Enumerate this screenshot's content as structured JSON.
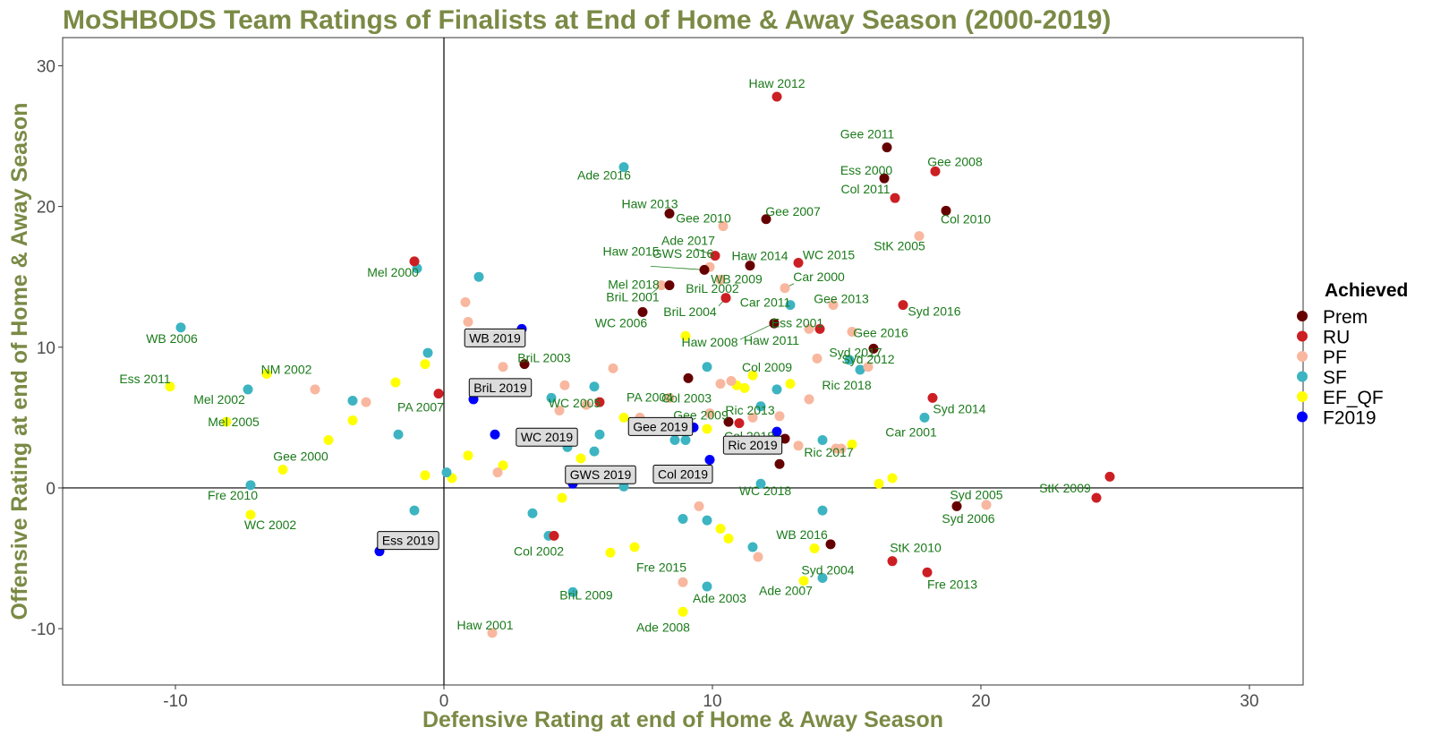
{
  "chart_data": {
    "type": "scatter",
    "title": "MoSHBODS Team Ratings of Finalists at End of Home & Away Season (2000-2019)",
    "xlabel": "Defensive Rating at end of Home & Away Season",
    "ylabel": "Offensive Rating at end of Home & Away Season",
    "xlim": [
      -14.2,
      32.0
    ],
    "ylim": [
      -14.0,
      32.0
    ],
    "xticks": [
      -10,
      0,
      10,
      20,
      30
    ],
    "yticks": [
      -10,
      0,
      10,
      20,
      30
    ],
    "grid": false,
    "reference_lines": {
      "x": 0,
      "y": 0
    },
    "legend": {
      "title": "Achieved",
      "position": "right",
      "entries": [
        {
          "label": "Prem",
          "color": "#660000"
        },
        {
          "label": "RU",
          "color": "#cc1f24"
        },
        {
          "label": "PF",
          "color": "#f8b79e"
        },
        {
          "label": "SF",
          "color": "#3db4c2"
        },
        {
          "label": "EF_QF",
          "color": "#ffff00"
        },
        {
          "label": "F2019",
          "color": "#0000ff"
        }
      ]
    },
    "points": [
      {
        "x": 12.4,
        "y": 27.8,
        "cat": "RU",
        "label": "Haw 2012"
      },
      {
        "x": 16.5,
        "y": 24.2,
        "cat": "Prem",
        "label": "Gee 2011"
      },
      {
        "x": 16.4,
        "y": 22.0,
        "cat": "Prem",
        "label": "Ess 2000"
      },
      {
        "x": 18.3,
        "y": 22.5,
        "cat": "RU",
        "label": "Gee 2008"
      },
      {
        "x": 16.8,
        "y": 20.6,
        "cat": "RU",
        "label": "Col 2011"
      },
      {
        "x": 18.7,
        "y": 19.7,
        "cat": "Prem",
        "label": "Col 2010"
      },
      {
        "x": 6.7,
        "y": 22.8,
        "cat": "SF",
        "label": "Ade 2016"
      },
      {
        "x": 8.4,
        "y": 19.5,
        "cat": "Prem",
        "label": "Haw 2013"
      },
      {
        "x": 12.0,
        "y": 19.1,
        "cat": "Prem",
        "label": "Gee 2007"
      },
      {
        "x": 10.4,
        "y": 18.6,
        "cat": "PF",
        "label": "Gee 2010"
      },
      {
        "x": 17.7,
        "y": 17.9,
        "cat": "PF",
        "label": "StK 2005"
      },
      {
        "x": 10.1,
        "y": 16.5,
        "cat": "RU",
        "label": "Ade 2017"
      },
      {
        "x": 9.7,
        "y": 15.5,
        "cat": "Prem",
        "label": "Haw 2015"
      },
      {
        "x": 9.9,
        "y": 15.7,
        "cat": "PF",
        "label": "GWS 2016"
      },
      {
        "x": 11.4,
        "y": 15.8,
        "cat": "Prem",
        "label": "Haw 2014"
      },
      {
        "x": 13.2,
        "y": 16.0,
        "cat": "RU",
        "label": "WC 2015"
      },
      {
        "x": 10.3,
        "y": 14.8,
        "cat": "PF",
        "label": "WB 2009"
      },
      {
        "x": 12.7,
        "y": 14.2,
        "cat": "PF",
        "label": "Car 2000"
      },
      {
        "x": -1.1,
        "y": 16.1,
        "cat": "RU",
        "label": "Mel 2000"
      },
      {
        "x": 8.4,
        "y": 14.4,
        "cat": "Prem",
        "label": "Mel 2018"
      },
      {
        "x": 8.1,
        "y": 14.4,
        "cat": "PF",
        "label": "BriL 2001"
      },
      {
        "x": 10.5,
        "y": 13.5,
        "cat": "RU",
        "label": "BriL 2002"
      },
      {
        "x": 12.9,
        "y": 13.0,
        "cat": "SF",
        "label": "Car 2011"
      },
      {
        "x": 14.5,
        "y": 13.0,
        "cat": "PF",
        "label": "Gee 2013"
      },
      {
        "x": 17.1,
        "y": 13.0,
        "cat": "RU",
        "label": "Syd 2016"
      },
      {
        "x": 7.4,
        "y": 12.5,
        "cat": "Prem",
        "label": "WC 2006"
      },
      {
        "x": 10.5,
        "y": 13.5,
        "cat": "RU",
        "label": "BriL 2004"
      },
      {
        "x": 12.3,
        "y": 11.7,
        "cat": "Prem",
        "label": "Haw 2008"
      },
      {
        "x": 14.0,
        "y": 11.3,
        "cat": "RU",
        "label": "Ess 2001"
      },
      {
        "x": 15.2,
        "y": 11.1,
        "cat": "PF",
        "label": "Gee 2016"
      },
      {
        "x": 12.3,
        "y": 11.7,
        "cat": "Prem",
        "label": "Haw 2011"
      },
      {
        "x": -9.8,
        "y": 11.4,
        "cat": "SF",
        "label": "WB 2006"
      },
      {
        "x": 16.0,
        "y": 9.9,
        "cat": "Prem",
        "label": "Syd 2017"
      },
      {
        "x": 15.8,
        "y": 8.6,
        "cat": "PF",
        "label": "Syd 2012"
      },
      {
        "x": 3.0,
        "y": 8.8,
        "cat": "Prem",
        "label": "BriL 2003"
      },
      {
        "x": -6.6,
        "y": 8.1,
        "cat": "EF_QF",
        "label": "NM 2002"
      },
      {
        "x": -10.2,
        "y": 7.2,
        "cat": "EF_QF",
        "label": "Ess 2011"
      },
      {
        "x": 9.1,
        "y": 7.8,
        "cat": "Prem",
        "label": "Col 2003"
      },
      {
        "x": 11.5,
        "y": 8.0,
        "cat": "EF_QF",
        "label": "Col 2009"
      },
      {
        "x": 15.5,
        "y": 8.4,
        "cat": "SF",
        "label": "Ric 2018"
      },
      {
        "x": -0.2,
        "y": 6.7,
        "cat": "RU",
        "label": "PA 2007"
      },
      {
        "x": -7.3,
        "y": 7.0,
        "cat": "SF",
        "label": "Mel 2002"
      },
      {
        "x": 11.8,
        "y": 5.8,
        "cat": "SF",
        "label": "Ric 2013"
      },
      {
        "x": 5.3,
        "y": 5.9,
        "cat": "PF",
        "label": "WC 2005"
      },
      {
        "x": 8.4,
        "y": 6.4,
        "cat": "PF",
        "label": "PA 2004"
      },
      {
        "x": -8.1,
        "y": 4.7,
        "cat": "EF_QF",
        "label": "Mel 2005"
      },
      {
        "x": 9.9,
        "y": 5.3,
        "cat": "PF",
        "label": "Gee 2009"
      },
      {
        "x": 18.2,
        "y": 6.4,
        "cat": "RU",
        "label": "Syd 2014"
      },
      {
        "x": 12.7,
        "y": 3.5,
        "cat": "Prem",
        "label": "Col 2018"
      },
      {
        "x": 17.9,
        "y": 5.0,
        "cat": "SF",
        "label": "Car 2001"
      },
      {
        "x": 14.6,
        "y": 2.8,
        "cat": "PF",
        "label": "Ric 2017"
      },
      {
        "x": -6.0,
        "y": 1.3,
        "cat": "EF_QF",
        "label": "Gee 2000"
      },
      {
        "x": 11.8,
        "y": 0.3,
        "cat": "SF",
        "label": "WC 2018"
      },
      {
        "x": -7.2,
        "y": 0.2,
        "cat": "SF",
        "label": "Fre 2010"
      },
      {
        "x": -7.2,
        "y": -1.9,
        "cat": "EF_QF",
        "label": "WC 2002"
      },
      {
        "x": 19.1,
        "y": -1.3,
        "cat": "Prem",
        "label": "Syd 2005"
      },
      {
        "x": 24.3,
        "y": -0.7,
        "cat": "RU",
        "label": "StK 2009"
      },
      {
        "x": 20.2,
        "y": -1.2,
        "cat": "PF",
        "label": "Syd 2006"
      },
      {
        "x": 4.1,
        "y": -3.4,
        "cat": "RU",
        "label": "Col 2002"
      },
      {
        "x": 14.4,
        "y": -4.0,
        "cat": "Prem",
        "label": "WB 2016"
      },
      {
        "x": 16.7,
        "y": -5.2,
        "cat": "RU",
        "label": "StK 2010"
      },
      {
        "x": 8.9,
        "y": -6.7,
        "cat": "PF",
        "label": "Fre 2015"
      },
      {
        "x": 14.1,
        "y": -6.4,
        "cat": "SF",
        "label": "Syd 2004"
      },
      {
        "x": 18.0,
        "y": -6.0,
        "cat": "RU",
        "label": "Fre 2013"
      },
      {
        "x": 4.8,
        "y": -7.4,
        "cat": "SF",
        "label": "BriL 2009"
      },
      {
        "x": 9.8,
        "y": -7.0,
        "cat": "SF",
        "label": "Ade 2003"
      },
      {
        "x": 13.4,
        "y": -6.6,
        "cat": "EF_QF",
        "label": "Ade 2007"
      },
      {
        "x": 8.9,
        "y": -8.8,
        "cat": "EF_QF",
        "label": "Ade 2008"
      },
      {
        "x": 1.8,
        "y": -10.3,
        "cat": "PF",
        "label": "Haw 2001"
      },
      {
        "x": 2.9,
        "y": 11.3,
        "cat": "F2019",
        "label": "WB 2019",
        "boxed": true
      },
      {
        "x": 1.1,
        "y": 6.3,
        "cat": "F2019",
        "label": "BriL 2019",
        "boxed": true
      },
      {
        "x": 1.9,
        "y": 3.8,
        "cat": "F2019",
        "label": "WC 2019",
        "boxed": true
      },
      {
        "x": 9.3,
        "y": 4.3,
        "cat": "F2019",
        "label": "Gee 2019",
        "boxed": true
      },
      {
        "x": 12.4,
        "y": 4.0,
        "cat": "F2019",
        "label": "Ric 2019",
        "boxed": true
      },
      {
        "x": 4.8,
        "y": 0.3,
        "cat": "F2019",
        "label": "GWS 2019",
        "boxed": true
      },
      {
        "x": 9.9,
        "y": 2.0,
        "cat": "F2019",
        "label": "Col 2019",
        "boxed": true
      },
      {
        "x": -2.4,
        "y": -4.5,
        "cat": "F2019",
        "label": "Ess 2019",
        "boxed": true
      },
      {
        "x": 24.8,
        "y": 0.8,
        "cat": "RU"
      },
      {
        "x": 1.3,
        "y": 15.0,
        "cat": "SF"
      },
      {
        "x": -1.0,
        "y": 15.6,
        "cat": "SF"
      },
      {
        "x": 0.8,
        "y": 13.2,
        "cat": "PF"
      },
      {
        "x": 0.9,
        "y": 11.8,
        "cat": "PF"
      },
      {
        "x": -0.6,
        "y": 9.6,
        "cat": "SF"
      },
      {
        "x": -0.7,
        "y": 8.8,
        "cat": "EF_QF"
      },
      {
        "x": -1.8,
        "y": 7.5,
        "cat": "EF_QF"
      },
      {
        "x": -4.8,
        "y": 7.0,
        "cat": "PF"
      },
      {
        "x": -3.4,
        "y": 6.2,
        "cat": "SF"
      },
      {
        "x": -2.9,
        "y": 6.1,
        "cat": "PF"
      },
      {
        "x": -3.4,
        "y": 4.8,
        "cat": "EF_QF"
      },
      {
        "x": -1.7,
        "y": 3.8,
        "cat": "SF"
      },
      {
        "x": -4.3,
        "y": 3.4,
        "cat": "EF_QF"
      },
      {
        "x": 0.9,
        "y": 2.3,
        "cat": "EF_QF"
      },
      {
        "x": 2.2,
        "y": 1.6,
        "cat": "EF_QF"
      },
      {
        "x": 2.0,
        "y": 1.1,
        "cat": "PF"
      },
      {
        "x": 0.1,
        "y": 1.1,
        "cat": "SF"
      },
      {
        "x": 0.3,
        "y": 0.7,
        "cat": "EF_QF"
      },
      {
        "x": -0.7,
        "y": 0.9,
        "cat": "EF_QF"
      },
      {
        "x": -1.1,
        "y": -1.6,
        "cat": "SF"
      },
      {
        "x": 2.2,
        "y": 8.6,
        "cat": "PF"
      },
      {
        "x": 4.5,
        "y": 7.3,
        "cat": "PF"
      },
      {
        "x": 6.3,
        "y": 8.5,
        "cat": "PF"
      },
      {
        "x": 4.0,
        "y": 6.4,
        "cat": "SF"
      },
      {
        "x": 5.6,
        "y": 7.2,
        "cat": "SF"
      },
      {
        "x": 5.8,
        "y": 6.1,
        "cat": "RU"
      },
      {
        "x": 4.3,
        "y": 5.5,
        "cat": "PF"
      },
      {
        "x": 4.1,
        "y": 3.8,
        "cat": "PF"
      },
      {
        "x": 4.6,
        "y": 2.9,
        "cat": "SF"
      },
      {
        "x": 5.8,
        "y": 3.8,
        "cat": "SF"
      },
      {
        "x": 5.6,
        "y": 2.6,
        "cat": "SF"
      },
      {
        "x": 5.1,
        "y": 2.1,
        "cat": "EF_QF"
      },
      {
        "x": 6.7,
        "y": 5.0,
        "cat": "EF_QF"
      },
      {
        "x": 7.3,
        "y": 5.0,
        "cat": "PF"
      },
      {
        "x": 7.8,
        "y": 4.4,
        "cat": "PF"
      },
      {
        "x": 8.1,
        "y": 4.4,
        "cat": "PF"
      },
      {
        "x": 8.6,
        "y": 3.4,
        "cat": "SF"
      },
      {
        "x": 9.0,
        "y": 3.4,
        "cat": "SF"
      },
      {
        "x": 9.8,
        "y": 4.2,
        "cat": "EF_QF"
      },
      {
        "x": 9.0,
        "y": 10.8,
        "cat": "EF_QF"
      },
      {
        "x": 9.8,
        "y": 8.6,
        "cat": "SF"
      },
      {
        "x": 10.3,
        "y": 7.4,
        "cat": "PF"
      },
      {
        "x": 10.7,
        "y": 7.6,
        "cat": "PF"
      },
      {
        "x": 10.9,
        "y": 7.3,
        "cat": "EF_QF"
      },
      {
        "x": 11.2,
        "y": 7.1,
        "cat": "EF_QF"
      },
      {
        "x": 11.5,
        "y": 5.0,
        "cat": "PF"
      },
      {
        "x": 10.6,
        "y": 4.7,
        "cat": "Prem"
      },
      {
        "x": 11.0,
        "y": 4.6,
        "cat": "RU"
      },
      {
        "x": 12.5,
        "y": 5.1,
        "cat": "PF"
      },
      {
        "x": 12.4,
        "y": 7.0,
        "cat": "SF"
      },
      {
        "x": 12.9,
        "y": 7.4,
        "cat": "EF_QF"
      },
      {
        "x": 13.6,
        "y": 6.3,
        "cat": "PF"
      },
      {
        "x": 14.1,
        "y": 3.4,
        "cat": "SF"
      },
      {
        "x": 14.8,
        "y": 2.8,
        "cat": "PF"
      },
      {
        "x": 15.2,
        "y": 3.1,
        "cat": "EF_QF"
      },
      {
        "x": 13.2,
        "y": 3.0,
        "cat": "PF"
      },
      {
        "x": 11.1,
        "y": 3.1,
        "cat": "SF"
      },
      {
        "x": 12.3,
        "y": 2.8,
        "cat": "EF_QF"
      },
      {
        "x": 12.5,
        "y": 1.7,
        "cat": "Prem"
      },
      {
        "x": 13.6,
        "y": 11.3,
        "cat": "PF"
      },
      {
        "x": 13.9,
        "y": 9.2,
        "cat": "PF"
      },
      {
        "x": 15.1,
        "y": 9.1,
        "cat": "SF"
      },
      {
        "x": 16.7,
        "y": 0.7,
        "cat": "EF_QF"
      },
      {
        "x": 16.2,
        "y": 0.3,
        "cat": "EF_QF"
      },
      {
        "x": 6.7,
        "y": 0.1,
        "cat": "SF"
      },
      {
        "x": 4.4,
        "y": -0.7,
        "cat": "EF_QF"
      },
      {
        "x": 3.3,
        "y": -1.8,
        "cat": "SF"
      },
      {
        "x": 3.9,
        "y": -3.4,
        "cat": "SF"
      },
      {
        "x": 6.2,
        "y": -4.6,
        "cat": "EF_QF"
      },
      {
        "x": 7.1,
        "y": -4.2,
        "cat": "EF_QF"
      },
      {
        "x": 8.9,
        "y": -2.2,
        "cat": "SF"
      },
      {
        "x": 9.5,
        "y": -1.3,
        "cat": "PF"
      },
      {
        "x": 9.8,
        "y": -2.3,
        "cat": "SF"
      },
      {
        "x": 10.3,
        "y": -2.9,
        "cat": "EF_QF"
      },
      {
        "x": 10.6,
        "y": -3.6,
        "cat": "EF_QF"
      },
      {
        "x": 11.5,
        "y": -4.2,
        "cat": "SF"
      },
      {
        "x": 11.7,
        "y": -4.9,
        "cat": "PF"
      },
      {
        "x": 13.8,
        "y": -4.3,
        "cat": "EF_QF"
      },
      {
        "x": 14.1,
        "y": -1.6,
        "cat": "SF"
      }
    ]
  }
}
